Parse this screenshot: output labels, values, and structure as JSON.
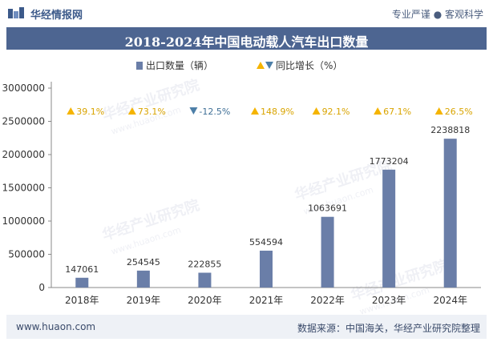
{
  "header": {
    "brand": "华经情报网",
    "slogan": "专业严谨 ● 客观科学"
  },
  "footer": {
    "site": "www.huaon.com",
    "source": "数据来源：中国海关，华经产业研究院整理"
  },
  "watermark": {
    "text": "华经产业研究院",
    "url": "www.huaon.com"
  },
  "colors": {
    "bar": "#6a7ea8",
    "up": "#f5b400",
    "down": "#4d7fa8",
    "title_bg": "#4d6591"
  },
  "chart_data": {
    "type": "bar",
    "title": "2018-2024年中国电动载人汽车出口数量",
    "categories": [
      "2018年",
      "2019年",
      "2020年",
      "2021年",
      "2022年",
      "2023年",
      "2024年"
    ],
    "series": [
      {
        "name": "出口数量（辆）",
        "values": [
          147061,
          254545,
          222855,
          554594,
          1063691,
          1773204,
          2238818
        ],
        "labels": [
          "147061",
          "254545",
          "222855",
          "554594",
          "1063691",
          "1773204",
          "2238818"
        ]
      },
      {
        "name": "同比增长（%）",
        "values": [
          39.1,
          73.1,
          -12.5,
          148.9,
          92.1,
          67.1,
          26.5
        ],
        "labels": [
          "39.1%",
          "73.1%",
          "-12.5%",
          "148.9%",
          "92.1%",
          "67.1%",
          "26.5%"
        ]
      }
    ],
    "y_ticks": [
      "0",
      "500000",
      "1000000",
      "1500000",
      "2000000",
      "2500000",
      "3000000"
    ],
    "ylim": [
      0,
      3000000
    ],
    "xlabel": "",
    "ylabel": "",
    "legend_position": "top-center"
  }
}
